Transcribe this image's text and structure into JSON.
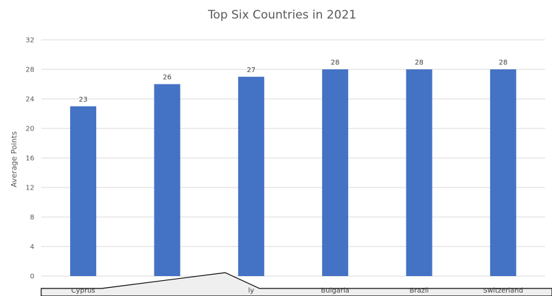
{
  "chart_data": {
    "type": "bar",
    "title": "Top Six Countries in 2021",
    "ylabel": "Average Points",
    "xlabel": "",
    "categories": [
      "Cyprus",
      "",
      "Italy",
      "Bulgaria",
      "Brazil",
      "Switzerland"
    ],
    "visible_category_labels": [
      "Cyprus",
      "",
      "ly",
      "Bulgaria",
      "Brazil",
      "Switzerland"
    ],
    "values": [
      23,
      26,
      27,
      28,
      28,
      28
    ],
    "data_labels": [
      "23",
      "26",
      "27",
      "28",
      "28",
      "28"
    ],
    "ylim": [
      0,
      32
    ],
    "yticks": [
      0,
      4,
      8,
      12,
      16,
      20,
      24,
      28,
      32
    ],
    "ytick_labels": [
      "0",
      "4",
      "8",
      "12",
      "16",
      "20",
      "24",
      "28",
      "32"
    ],
    "grid": true,
    "legend": "none",
    "bar_color": "#4472C4",
    "grid_color": "#d9d9d9",
    "overlay_color": "#efefef",
    "overlay_border": "#000000"
  }
}
